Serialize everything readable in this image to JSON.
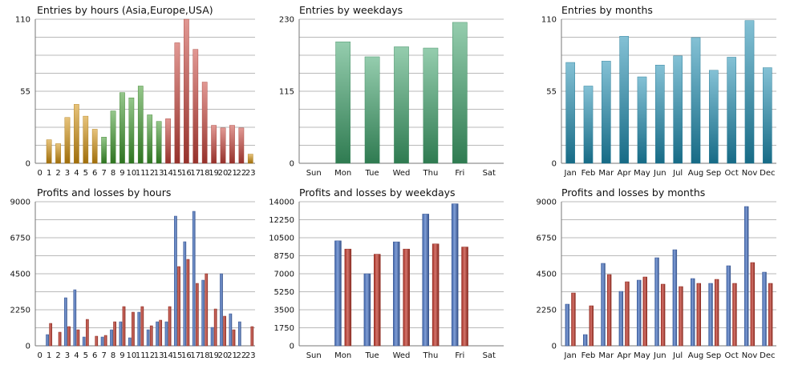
{
  "colors": {
    "hours_asia": "#d4920f",
    "hours_europe": "#3f9a2c",
    "hours_usa": "#c8433a",
    "weekdays": "#3fa46c",
    "months": "#1f8fb3",
    "profit": "#4a74c4",
    "loss": "#c0392b"
  },
  "chart_data": [
    {
      "type": "bar",
      "title": "Entries by hours (Asia,Europe,USA)",
      "categories": [
        "0",
        "1",
        "2",
        "3",
        "4",
        "5",
        "6",
        "7",
        "8",
        "9",
        "10",
        "11",
        "12",
        "13",
        "14",
        "15",
        "16",
        "17",
        "18",
        "19",
        "20",
        "21",
        "22",
        "23"
      ],
      "values": [
        0,
        18,
        15,
        35,
        45,
        36,
        26,
        20,
        40,
        54,
        50,
        59,
        37,
        32,
        34,
        92,
        110,
        87,
        62,
        29,
        27,
        29,
        27,
        7
      ],
      "groups": [
        "asia",
        "asia",
        "asia",
        "asia",
        "asia",
        "asia",
        "asia",
        "europe",
        "europe",
        "europe",
        "europe",
        "europe",
        "europe",
        "europe",
        "usa",
        "usa",
        "usa",
        "usa",
        "usa",
        "usa",
        "usa",
        "usa",
        "usa",
        "asia"
      ],
      "yticks": [
        0,
        55,
        110
      ],
      "ylim": [
        0,
        110
      ]
    },
    {
      "type": "bar",
      "title": "Entries by weekdays",
      "categories": [
        "Sun",
        "Mon",
        "Tue",
        "Wed",
        "Thu",
        "Fri",
        "Sat"
      ],
      "values": [
        0,
        194,
        170,
        186,
        184,
        225,
        0
      ],
      "yticks": [
        0,
        115,
        230
      ],
      "ylim": [
        0,
        230
      ]
    },
    {
      "type": "bar",
      "title": "Entries by months",
      "categories": [
        "Jan",
        "Feb",
        "Mar",
        "Apr",
        "May",
        "Jun",
        "Jul",
        "Aug",
        "Sep",
        "Oct",
        "Nov",
        "Dec"
      ],
      "values": [
        77,
        59,
        78,
        97,
        66,
        75,
        82,
        96,
        71,
        81,
        109,
        73
      ],
      "yticks": [
        0,
        55,
        110
      ],
      "ylim": [
        0,
        110
      ]
    },
    {
      "type": "bar",
      "title": "Profits and losses by hours",
      "categories": [
        "0",
        "1",
        "2",
        "3",
        "4",
        "5",
        "6",
        "7",
        "8",
        "9",
        "10",
        "11",
        "12",
        "13",
        "14",
        "15",
        "16",
        "17",
        "18",
        "19",
        "20",
        "21",
        "22",
        "23"
      ],
      "series": [
        {
          "name": "Profits",
          "values": [
            0,
            700,
            0,
            3000,
            3500,
            550,
            0,
            550,
            1000,
            1500,
            500,
            2100,
            1000,
            1500,
            1500,
            8100,
            6500,
            8400,
            4100,
            1150,
            4500,
            2000,
            1500,
            0
          ]
        },
        {
          "name": "Losses",
          "values": [
            0,
            1400,
            850,
            1200,
            1000,
            1650,
            600,
            650,
            1500,
            2450,
            2100,
            2450,
            1250,
            1600,
            2450,
            4950,
            5400,
            3900,
            4500,
            2300,
            1850,
            1000,
            0,
            1200
          ]
        }
      ],
      "yticks": [
        0,
        2250,
        4500,
        6750,
        9000
      ],
      "ylim": [
        0,
        9000
      ]
    },
    {
      "type": "bar",
      "title": "Profits and losses by weekdays",
      "categories": [
        "Sun",
        "Mon",
        "Tue",
        "Wed",
        "Thu",
        "Fri",
        "Sat"
      ],
      "series": [
        {
          "name": "Profits",
          "values": [
            0,
            10200,
            7000,
            10100,
            12800,
            13800,
            0
          ]
        },
        {
          "name": "Losses",
          "values": [
            0,
            9400,
            8900,
            9400,
            9900,
            9600,
            0
          ]
        }
      ],
      "yticks": [
        0,
        1750,
        3500,
        5250,
        7000,
        8750,
        10500,
        12250,
        14000
      ],
      "ylim": [
        0,
        14000
      ]
    },
    {
      "type": "bar",
      "title": "Profits and losses by months",
      "categories": [
        "Jan",
        "Feb",
        "Mar",
        "Apr",
        "May",
        "Jun",
        "Jul",
        "Aug",
        "Sep",
        "Oct",
        "Nov",
        "Dec"
      ],
      "series": [
        {
          "name": "Profits",
          "values": [
            2600,
            700,
            5150,
            3400,
            4100,
            5500,
            6000,
            4200,
            3900,
            5000,
            8700,
            4600
          ]
        },
        {
          "name": "Losses",
          "values": [
            3300,
            2500,
            4450,
            4000,
            4300,
            3850,
            3700,
            3900,
            4150,
            3900,
            5200,
            3900
          ]
        }
      ],
      "yticks": [
        0,
        2250,
        4500,
        6750,
        9000
      ],
      "ylim": [
        0,
        9000
      ]
    }
  ]
}
